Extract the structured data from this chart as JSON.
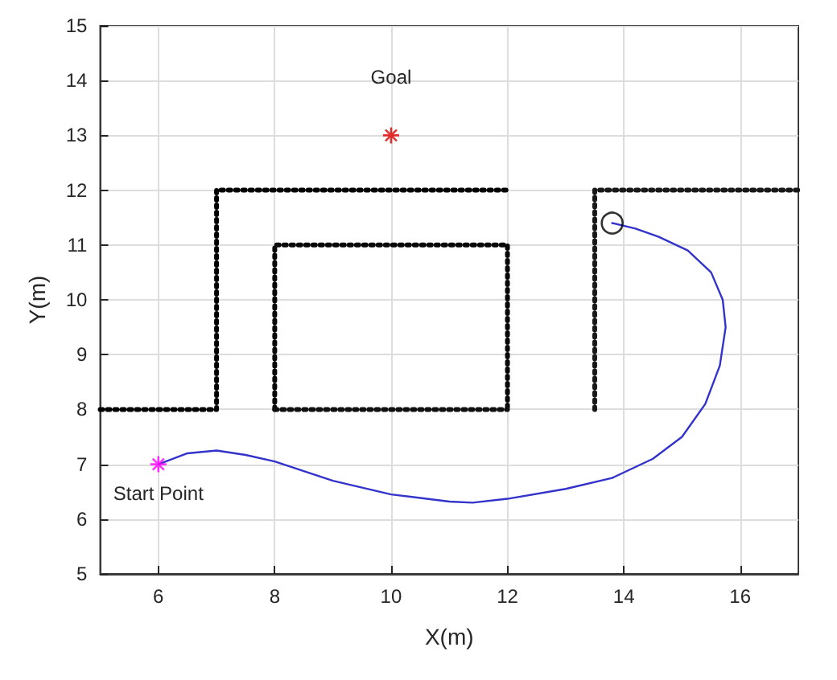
{
  "chart_data": {
    "type": "line",
    "xlabel": "X(m)",
    "ylabel": "Y(m)",
    "xlim": [
      5,
      17
    ],
    "ylim": [
      5,
      15
    ],
    "xticks": [
      6,
      8,
      10,
      12,
      14,
      16
    ],
    "yticks": [
      5,
      6,
      7,
      8,
      9,
      10,
      11,
      12,
      13,
      14,
      15
    ],
    "grid": true,
    "legend": false,
    "series": [
      {
        "type": "line",
        "color": "#000000",
        "line_style": "dotted",
        "marker": "none",
        "x": [
          5,
          7,
          7,
          12
        ],
        "values": [
          8,
          8,
          12,
          12
        ]
      },
      {
        "type": "line",
        "color": "#080808",
        "line_style": "dotted",
        "marker": "none",
        "x": [
          8,
          8,
          12,
          12
        ],
        "values": [
          8,
          11,
          11,
          8
        ]
      },
      {
        "type": "line",
        "color": "#101010",
        "line_style": "dotted",
        "marker": "none",
        "x": [
          8,
          12
        ],
        "values": [
          8,
          8
        ]
      },
      {
        "type": "line",
        "color": "#181818",
        "line_style": "dotted",
        "marker": "none",
        "x": [
          13.5,
          13.5,
          17
        ],
        "values": [
          8,
          12,
          12
        ]
      },
      {
        "color": "#3333cc",
        "line_style": "solid",
        "marker": "none",
        "x": [
          6,
          6.5,
          7,
          7.5,
          8,
          9,
          10,
          11,
          11.4,
          12,
          13,
          13.8,
          14.5,
          15,
          15.4,
          15.65,
          15.75,
          15.7,
          15.5,
          15.1,
          14.6,
          14.2,
          13.8
        ],
        "values": [
          7,
          7.2,
          7.25,
          7.17,
          7.05,
          6.7,
          6.45,
          6.32,
          6.3,
          6.37,
          6.55,
          6.75,
          7.1,
          7.5,
          8.1,
          8.8,
          9.5,
          10,
          10.5,
          10.9,
          11.15,
          11.3,
          11.4
        ]
      },
      {
        "type": "scatter",
        "color": "#ff00ff",
        "marker": "cross",
        "x": [
          6
        ],
        "values": [
          7
        ]
      },
      {
        "type": "scatter",
        "color": "#dd0000",
        "marker": "cross",
        "x": [
          10
        ],
        "values": [
          13
        ]
      },
      {
        "type": "scatter",
        "color": "#000000",
        "marker": "circle",
        "x": [
          13.8
        ],
        "values": [
          11.4
        ]
      }
    ],
    "annotations": [
      {
        "text": "Goal",
        "x": 10,
        "y": 13
      },
      {
        "text": "Start Point",
        "x": 6,
        "y": 7
      }
    ]
  }
}
